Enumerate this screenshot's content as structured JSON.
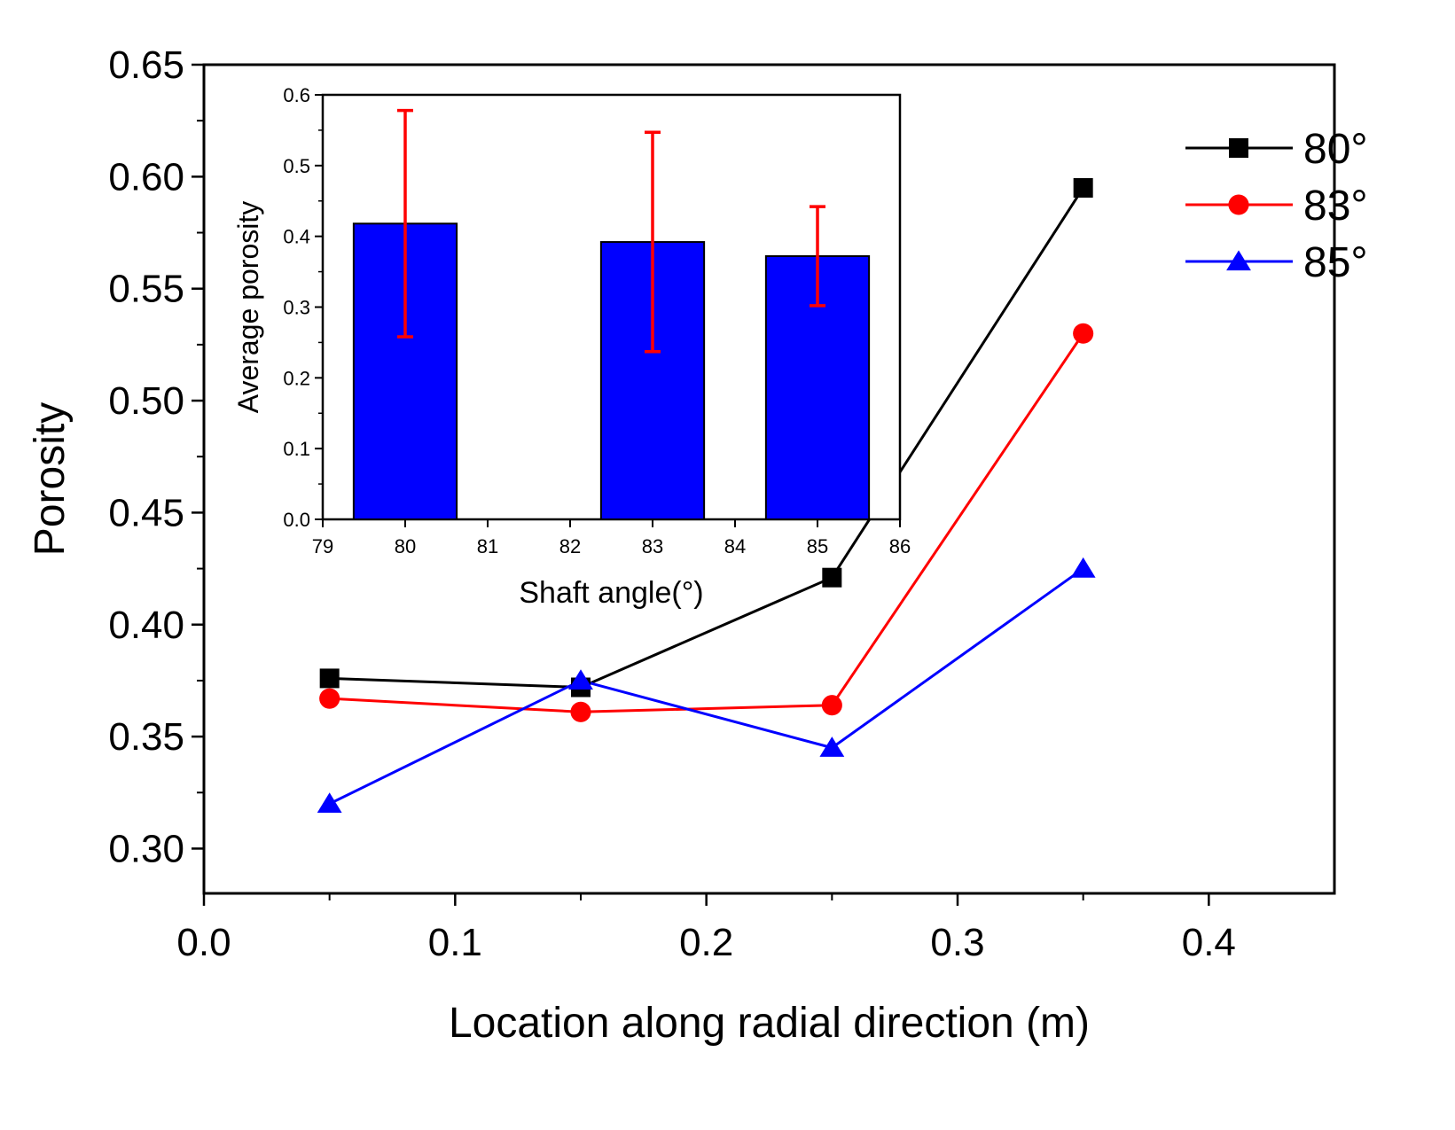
{
  "chart_data": [
    {
      "id": "main",
      "type": "line",
      "title": "",
      "xlabel": "Location along radial direction (m)",
      "ylabel": "Porosity",
      "xlim": [
        0,
        0.45
      ],
      "ylim": [
        0.28,
        0.65
      ],
      "xticks": [
        0.0,
        0.1,
        0.2,
        0.3,
        0.4
      ],
      "xtick_labels": [
        "0.0",
        "0.1",
        "0.2",
        "0.3",
        "0.4"
      ],
      "yticks": [
        0.3,
        0.35,
        0.4,
        0.45,
        0.5,
        0.55,
        0.6,
        0.65
      ],
      "ytick_labels": [
        "0.30",
        "0.35",
        "0.40",
        "0.45",
        "0.50",
        "0.55",
        "0.60",
        "0.65"
      ],
      "grid": false,
      "legend_position": "top-right",
      "x": [
        0.05,
        0.15,
        0.25,
        0.35
      ],
      "series": [
        {
          "name": "80°",
          "color": "#000000",
          "marker": "square",
          "values": [
            0.376,
            0.372,
            0.421,
            0.595
          ]
        },
        {
          "name": "83°",
          "color": "#ff0000",
          "marker": "circle",
          "values": [
            0.367,
            0.361,
            0.364,
            0.53
          ]
        },
        {
          "name": "85°",
          "color": "#0000ff",
          "marker": "triangle",
          "values": [
            0.32,
            0.375,
            0.345,
            0.425
          ]
        }
      ]
    },
    {
      "id": "inset",
      "type": "bar",
      "title": "",
      "xlabel": "Shaft angle(°)",
      "ylabel": "Average porosity",
      "xlim": [
        79,
        86
      ],
      "ylim": [
        0,
        0.6
      ],
      "xticks": [
        79,
        80,
        81,
        82,
        83,
        84,
        85,
        86
      ],
      "xtick_labels": [
        "79",
        "80",
        "81",
        "82",
        "83",
        "84",
        "85",
        "86"
      ],
      "yticks": [
        0.0,
        0.1,
        0.2,
        0.3,
        0.4,
        0.5,
        0.6
      ],
      "ytick_labels": [
        "0.0",
        "0.1",
        "0.2",
        "0.3",
        "0.4",
        "0.5",
        "0.6"
      ],
      "grid": false,
      "bar_color": "#0000ff",
      "error_color": "#ff0000",
      "bar_width": 1.25,
      "x": [
        80,
        83,
        85
      ],
      "values": [
        0.418,
        0.392,
        0.372
      ],
      "errors": [
        0.16,
        0.155,
        0.07
      ]
    }
  ]
}
